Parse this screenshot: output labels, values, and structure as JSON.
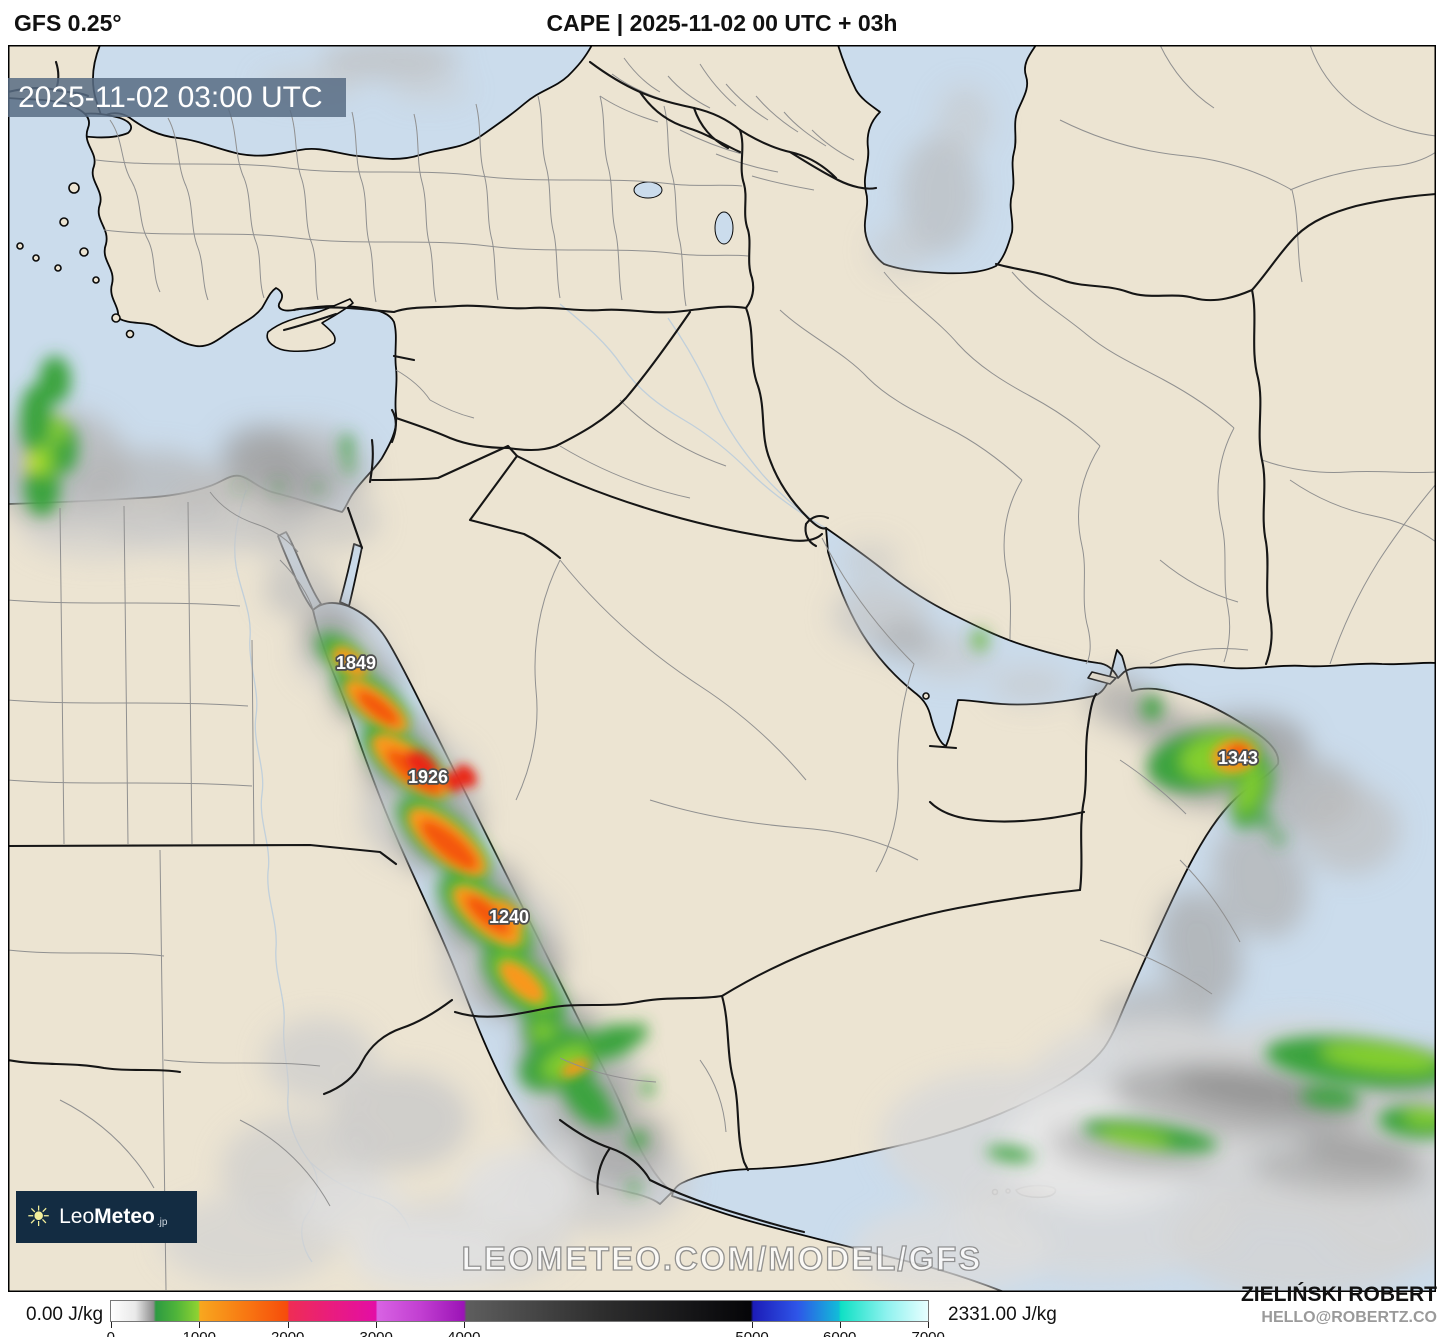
{
  "header": {
    "model_label": "GFS 0.25°",
    "title": "CAPE | 2025-11-02 00 UTC + 03h"
  },
  "map": {
    "timestamp_overlay": "2025-11-02 03:00 UTC",
    "watermark": "LEOMETEO.COM/MODEL/GFS",
    "value_labels": [
      {
        "text": "1849"
      },
      {
        "text": "1926"
      },
      {
        "text": "1240"
      },
      {
        "text": "1343"
      }
    ],
    "logo": {
      "word_thin": "Leo",
      "word_bold": "Meteo",
      "tld": ".jp"
    }
  },
  "footer": {
    "min_label": "0.00 J/kg",
    "max_label": "2331.00 J/kg",
    "author_name": "ZIELIŃSKI ROBERT",
    "author_contact": "HELLO@ROBERTZ.CO",
    "colorbar": {
      "units": "J/kg",
      "ticks": [
        "0",
        "1000",
        "2000",
        "3000",
        "4000",
        "5000",
        "6000",
        "7000"
      ],
      "tick_positions": [
        0.001,
        0.109,
        0.217,
        0.325,
        0.432,
        0.784,
        0.891,
        0.999
      ],
      "segment_colors": [
        "#ffffff",
        "#8e8e8e",
        "#2d9a41",
        "#8fd232",
        "#f8a71f",
        "#f64c0b",
        "#ee2d55",
        "#e30ea5",
        "#d863e3",
        "#9b14b6",
        "#5e5e5e",
        "#050508",
        "#1c1cb8",
        "#2e55e8",
        "#0ee0c4",
        "#e8feff"
      ]
    }
  }
}
